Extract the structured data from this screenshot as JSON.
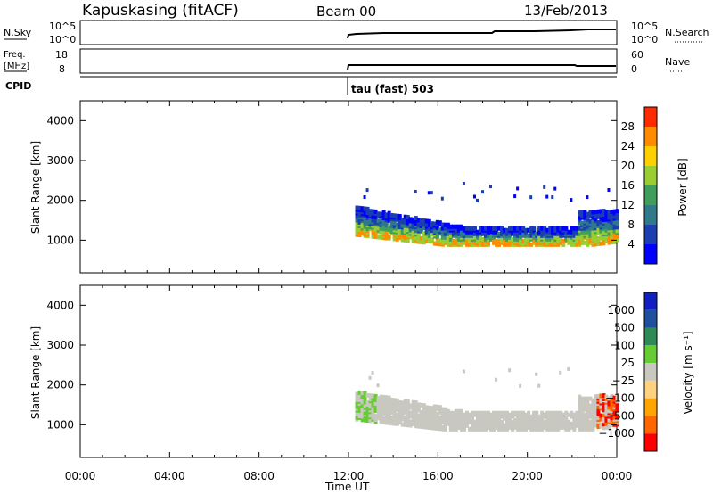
{
  "header": {
    "station": "Kapuskasing (fitACF)",
    "beam": "Beam 00",
    "date": "13/Feb/2013"
  },
  "panels": {
    "noise": {
      "left_label": "N.Sky",
      "right_label": "N.Search",
      "left_ticks": [
        "10^5",
        "10^0"
      ],
      "right_ticks": [
        "10^5",
        "10^0"
      ]
    },
    "freq": {
      "left_label_1": "Freq.",
      "left_label_2": "[MHz]",
      "right_label": "Nave",
      "left_ticks": [
        "18",
        "8"
      ],
      "right_ticks": [
        "60",
        "0"
      ]
    },
    "cpid": {
      "label": "CPID",
      "mode": "tau (fast) 503"
    }
  },
  "colors": {
    "power_scale": [
      "#0000ff",
      "#1a3fb0",
      "#2e7a8a",
      "#3f9e5a",
      "#9acd32",
      "#ffd000",
      "#ff8c00",
      "#ff2a00"
    ],
    "velocity_scale": [
      "#ff0000",
      "#ff6600",
      "#ffa500",
      "#ffd280",
      "#c8c8c0",
      "#66cc33",
      "#2e8b57",
      "#1e50a0",
      "#1020c0"
    ]
  },
  "chart_data": [
    {
      "type": "heatmap",
      "title": "",
      "xlabel": "Time UT",
      "ylabel": "Slant Range [km]",
      "xlim": [
        "00:00",
        "24:00"
      ],
      "x_ticks": [
        "00:00",
        "04:00",
        "08:00",
        "12:00",
        "16:00",
        "20:00",
        "00:00"
      ],
      "ylim": [
        180,
        4500
      ],
      "y_ticks": [
        1000,
        2000,
        3000,
        4000
      ],
      "colorbar": {
        "label": "Power [dB]",
        "ticks": [
          4,
          8,
          12,
          16,
          20,
          24,
          28
        ],
        "range": [
          0,
          30
        ]
      },
      "data_start": "12:00",
      "bands": [
        {
          "range_km": [
            800,
            1100
          ],
          "time": [
            "12:20",
            "24:00"
          ],
          "power_db": 20
        },
        {
          "range_km": [
            1100,
            1400
          ],
          "time": [
            "12:20",
            "24:00"
          ],
          "power_db": 12
        },
        {
          "range_km": [
            1400,
            1800
          ],
          "time": [
            "12:20",
            "24:00"
          ],
          "power_db": 6
        }
      ]
    },
    {
      "type": "heatmap",
      "title": "",
      "xlabel": "Time UT",
      "ylabel": "Slant Range [km]",
      "xlim": [
        "00:00",
        "24:00"
      ],
      "x_ticks": [
        "00:00",
        "04:00",
        "08:00",
        "12:00",
        "16:00",
        "20:00",
        "00:00"
      ],
      "ylim": [
        180,
        4500
      ],
      "y_ticks": [
        1000,
        2000,
        3000,
        4000
      ],
      "colorbar": {
        "label": "Velocity [m s⁻¹]",
        "ticks": [
          "1000",
          "500",
          "100",
          "25",
          "−25",
          "−100",
          "−500",
          "−1000"
        ]
      },
      "data_start": "12:00",
      "bands": [
        {
          "range_km": [
            800,
            1700
          ],
          "time": [
            "12:20",
            "24:00"
          ],
          "velocity_ms": 0
        }
      ]
    }
  ]
}
